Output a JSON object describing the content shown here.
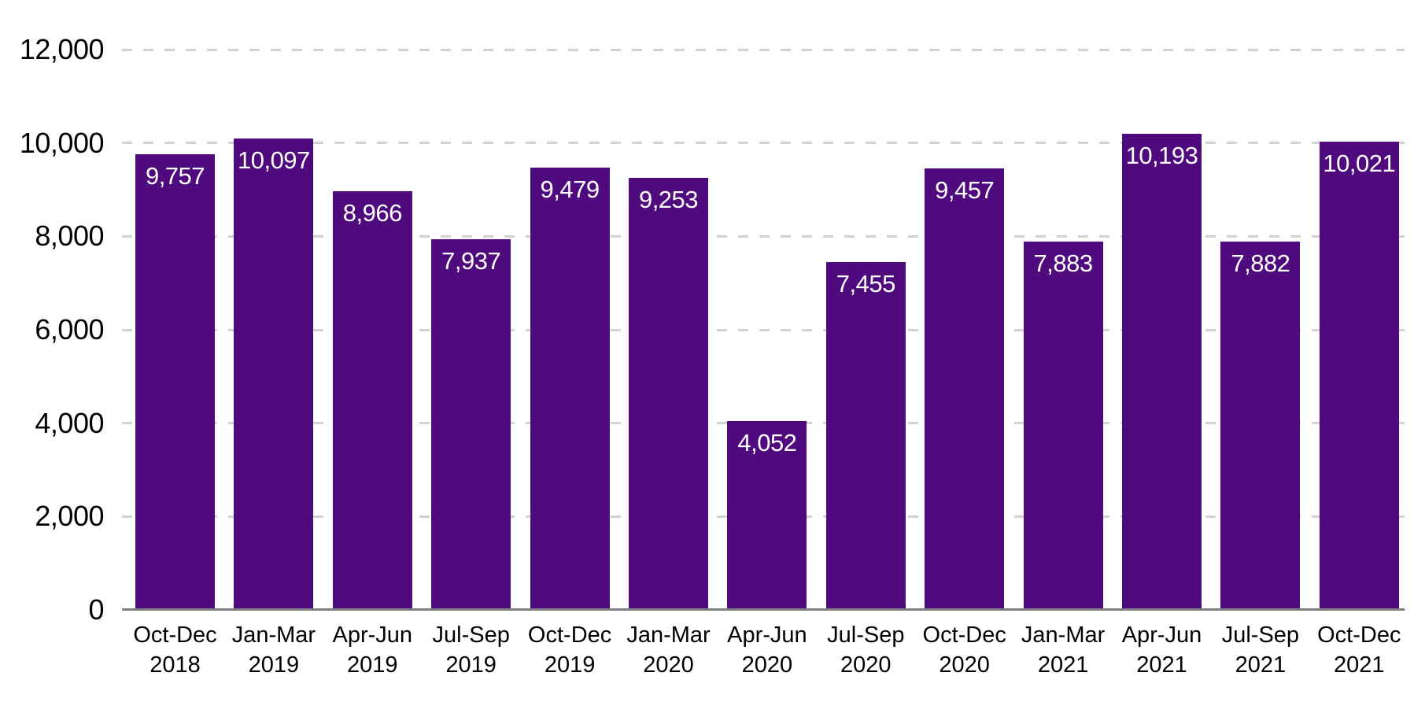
{
  "chart_data": {
    "type": "bar",
    "title": "",
    "xlabel": "",
    "ylabel": "",
    "categories": [
      "Oct-Dec 2018",
      "Jan-Mar 2019",
      "Apr-Jun 2019",
      "Jul-Sep 2019",
      "Oct-Dec 2019",
      "Jan-Mar 2020",
      "Apr-Jun 2020",
      "Jul-Sep 2020",
      "Oct-Dec 2020",
      "Jan-Mar 2021",
      "Apr-Jun 2021",
      "Jul-Sep 2021",
      "Oct-Dec 2021"
    ],
    "category_line1": [
      "Oct-Dec",
      "Jan-Mar",
      "Apr-Jun",
      "Jul-Sep",
      "Oct-Dec",
      "Jan-Mar",
      "Apr-Jun",
      "Jul-Sep",
      "Oct-Dec",
      "Jan-Mar",
      "Apr-Jun",
      "Jul-Sep",
      "Oct-Dec"
    ],
    "category_line2": [
      "2018",
      "2019",
      "2019",
      "2019",
      "2019",
      "2020",
      "2020",
      "2020",
      "2020",
      "2021",
      "2021",
      "2021",
      "2021"
    ],
    "values": [
      9757,
      10097,
      8966,
      7937,
      9479,
      9253,
      4052,
      7455,
      9457,
      7883,
      10193,
      7882,
      10021
    ],
    "value_labels": [
      "9,757",
      "10,097",
      "8,966",
      "7,937",
      "9,479",
      "9,253",
      "4,052",
      "7,455",
      "9,457",
      "7,883",
      "10,193",
      "7,882",
      "10,021"
    ],
    "ylim": [
      0,
      12000
    ],
    "y_tick_step": 2000,
    "y_tick_labels": [
      "0",
      "2,000",
      "4,000",
      "6,000",
      "8,000",
      "10,000",
      "12,000"
    ],
    "grid": "horizontal-dashed",
    "legend": "none",
    "colors": {
      "bar": "#4F0A7E",
      "bar_value_label": "#FFFFFF",
      "gridline": "#D2D2D2",
      "axis_line": "#7F7F7F",
      "tick_text": "#000000",
      "background": "#FFFFFF"
    }
  }
}
